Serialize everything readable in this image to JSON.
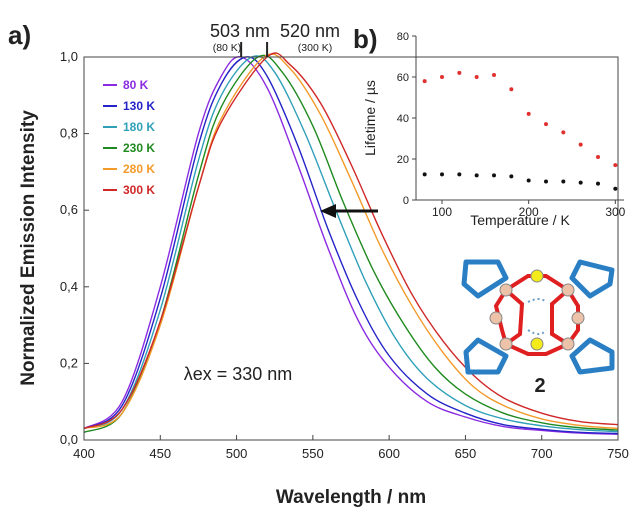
{
  "chart_data": [
    {
      "panel": "a)",
      "type": "line",
      "xlabel": "Wavelength / nm",
      "ylabel": "Normalized Emission  Intensity",
      "xlim": [
        400,
        750
      ],
      "ylim": [
        0,
        1.0
      ],
      "xticks": [
        "400",
        "450",
        "500",
        "550",
        "600",
        "650",
        "700",
        "750"
      ],
      "yticks": [
        "0,0",
        "0,2",
        "0,4",
        "0,6",
        "0,8",
        "1,0"
      ],
      "series": [
        {
          "name": "80 K",
          "color": "#8a2be2",
          "peak_nm": 503,
          "x": [
            400,
            425,
            450,
            475,
            490,
            503,
            520,
            540,
            560,
            580,
            600,
            625,
            650,
            675,
            700,
            725,
            750
          ],
          "y": [
            0.03,
            0.1,
            0.4,
            0.8,
            0.95,
            1.0,
            0.92,
            0.72,
            0.5,
            0.31,
            0.19,
            0.1,
            0.06,
            0.035,
            0.025,
            0.018,
            0.015
          ]
        },
        {
          "name": "130 K",
          "color": "#2424c8",
          "peak_nm": 506,
          "x": [
            400,
            425,
            450,
            475,
            490,
            506,
            520,
            540,
            560,
            580,
            600,
            625,
            650,
            675,
            700,
            725,
            750
          ],
          "y": [
            0.03,
            0.09,
            0.37,
            0.77,
            0.93,
            1.0,
            0.95,
            0.77,
            0.55,
            0.36,
            0.22,
            0.12,
            0.07,
            0.04,
            0.028,
            0.02,
            0.017
          ]
        },
        {
          "name": "180 K",
          "color": "#2fa0b8",
          "peak_nm": 510,
          "x": [
            400,
            425,
            450,
            475,
            490,
            510,
            525,
            545,
            565,
            585,
            605,
            625,
            650,
            675,
            700,
            725,
            750
          ],
          "y": [
            0.03,
            0.08,
            0.34,
            0.73,
            0.9,
            1.0,
            0.96,
            0.8,
            0.6,
            0.41,
            0.26,
            0.16,
            0.09,
            0.055,
            0.037,
            0.027,
            0.022
          ]
        },
        {
          "name": "230 K",
          "color": "#1f8a1f",
          "peak_nm": 514,
          "x": [
            400,
            425,
            450,
            475,
            490,
            514,
            530,
            550,
            570,
            590,
            610,
            630,
            650,
            675,
            700,
            725,
            750
          ],
          "y": [
            0.02,
            0.07,
            0.31,
            0.69,
            0.87,
            1.0,
            0.96,
            0.82,
            0.62,
            0.44,
            0.3,
            0.19,
            0.12,
            0.07,
            0.045,
            0.032,
            0.026
          ]
        },
        {
          "name": "280 K",
          "color": "#f39a2a",
          "peak_nm": 518,
          "x": [
            400,
            425,
            450,
            475,
            490,
            518,
            535,
            555,
            575,
            595,
            615,
            635,
            655,
            675,
            700,
            725,
            750
          ],
          "y": [
            0.03,
            0.07,
            0.3,
            0.66,
            0.84,
            1.0,
            0.97,
            0.85,
            0.68,
            0.5,
            0.35,
            0.23,
            0.14,
            0.09,
            0.055,
            0.038,
            0.03
          ]
        },
        {
          "name": "300 K",
          "color": "#d02828",
          "peak_nm": 520,
          "x": [
            400,
            425,
            450,
            475,
            490,
            520,
            535,
            555,
            575,
            595,
            615,
            635,
            655,
            675,
            700,
            725,
            750
          ],
          "y": [
            0.03,
            0.08,
            0.31,
            0.66,
            0.83,
            1.0,
            0.98,
            0.88,
            0.72,
            0.54,
            0.38,
            0.26,
            0.17,
            0.11,
            0.07,
            0.048,
            0.04
          ]
        }
      ],
      "annotations": {
        "peak_low": "503 nm",
        "peak_low_note": "(80 K)",
        "peak_high": "520 nm",
        "peak_high_note": "(300 K)",
        "excitation": "λex = 330 nm",
        "compound": "2"
      }
    },
    {
      "panel": "b)",
      "type": "scatter",
      "xlabel": "Temperature / K",
      "ylabel": "Lifetime / µs",
      "xlim": [
        70,
        310
      ],
      "ylim": [
        0,
        80
      ],
      "xticks": [
        "100",
        "200",
        "300"
      ],
      "yticks": [
        "0",
        "20",
        "40",
        "60",
        "80"
      ],
      "series": [
        {
          "color": "#e03030",
          "x": [
            80,
            100,
            120,
            140,
            160,
            180,
            200,
            220,
            240,
            260,
            280,
            300
          ],
          "y": [
            58,
            60,
            62,
            60,
            61,
            54,
            42,
            37,
            33,
            27,
            21,
            17
          ]
        },
        {
          "color": "#111111",
          "x": [
            80,
            100,
            120,
            140,
            160,
            180,
            200,
            220,
            240,
            260,
            280,
            300
          ],
          "y": [
            12.5,
            12.5,
            12.5,
            12,
            12,
            11.5,
            9.5,
            9,
            9,
            8.5,
            8,
            5.5
          ]
        }
      ]
    }
  ]
}
